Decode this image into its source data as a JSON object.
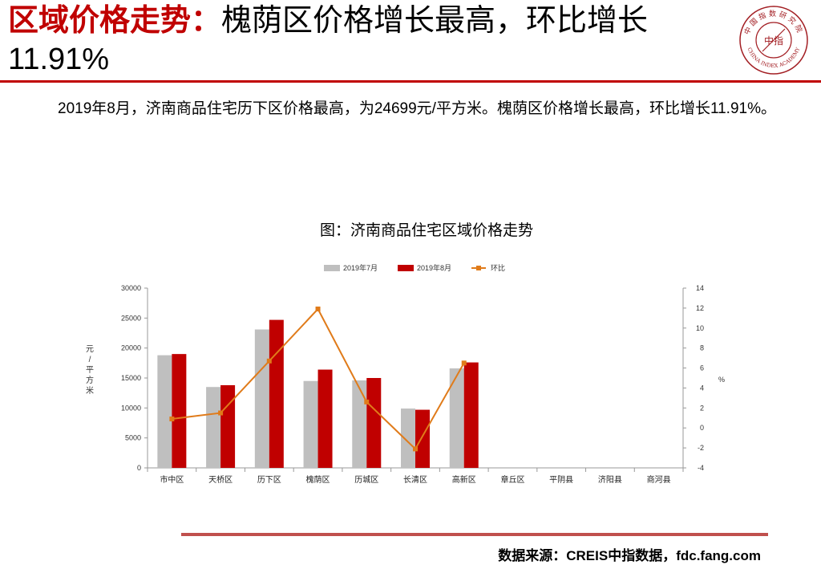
{
  "header": {
    "title_prefix": "区域价格走势：",
    "title_rest": "槐荫区价格增长最高，环比增长11.91%"
  },
  "summary": "2019年8月，济南商品住宅历下区价格最高，为24699元/平方米。槐荫区价格增长最高，环比增长11.91%。",
  "logo": {
    "top_text": "中国指数研究院",
    "bottom_text": "CHINA INDEX ACADEMY",
    "center_text": "中指",
    "color": "#a31f24"
  },
  "chart_data": {
    "type": "bar",
    "title": "图：济南商品住宅区域价格走势",
    "categories": [
      "市中区",
      "天桥区",
      "历下区",
      "槐荫区",
      "历城区",
      "长清区",
      "高新区",
      "章丘区",
      "平阴县",
      "济阳县",
      "商河县"
    ],
    "series": [
      {
        "name": "2019年7月",
        "type": "bar",
        "color": "#bfbfbf",
        "axis": "left",
        "values": [
          18800,
          13500,
          23100,
          14500,
          14600,
          9900,
          16600,
          null,
          null,
          null,
          null
        ]
      },
      {
        "name": "2019年8月",
        "type": "bar",
        "color": "#c00000",
        "axis": "left",
        "values": [
          19000,
          13800,
          24699,
          16400,
          15000,
          9700,
          17600,
          null,
          null,
          null,
          null
        ]
      },
      {
        "name": "环比",
        "type": "line",
        "color": "#e07b1a",
        "axis": "right",
        "values": [
          0.9,
          1.5,
          6.7,
          11.91,
          2.6,
          -2.1,
          6.5,
          null,
          null,
          null,
          null
        ]
      }
    ],
    "ylabel": "元/平方米",
    "ylim": [
      0,
      30000
    ],
    "yticks": [
      0,
      5000,
      10000,
      15000,
      20000,
      25000,
      30000
    ],
    "y2label": "%",
    "y2lim": [
      -4,
      14
    ],
    "y2ticks": [
      -4,
      -2,
      0,
      2,
      4,
      6,
      8,
      10,
      12,
      14
    ],
    "legend": "top-center",
    "grid": false
  },
  "footer": {
    "source": "数据来源：CREIS中指数据，fdc.fang.com"
  }
}
